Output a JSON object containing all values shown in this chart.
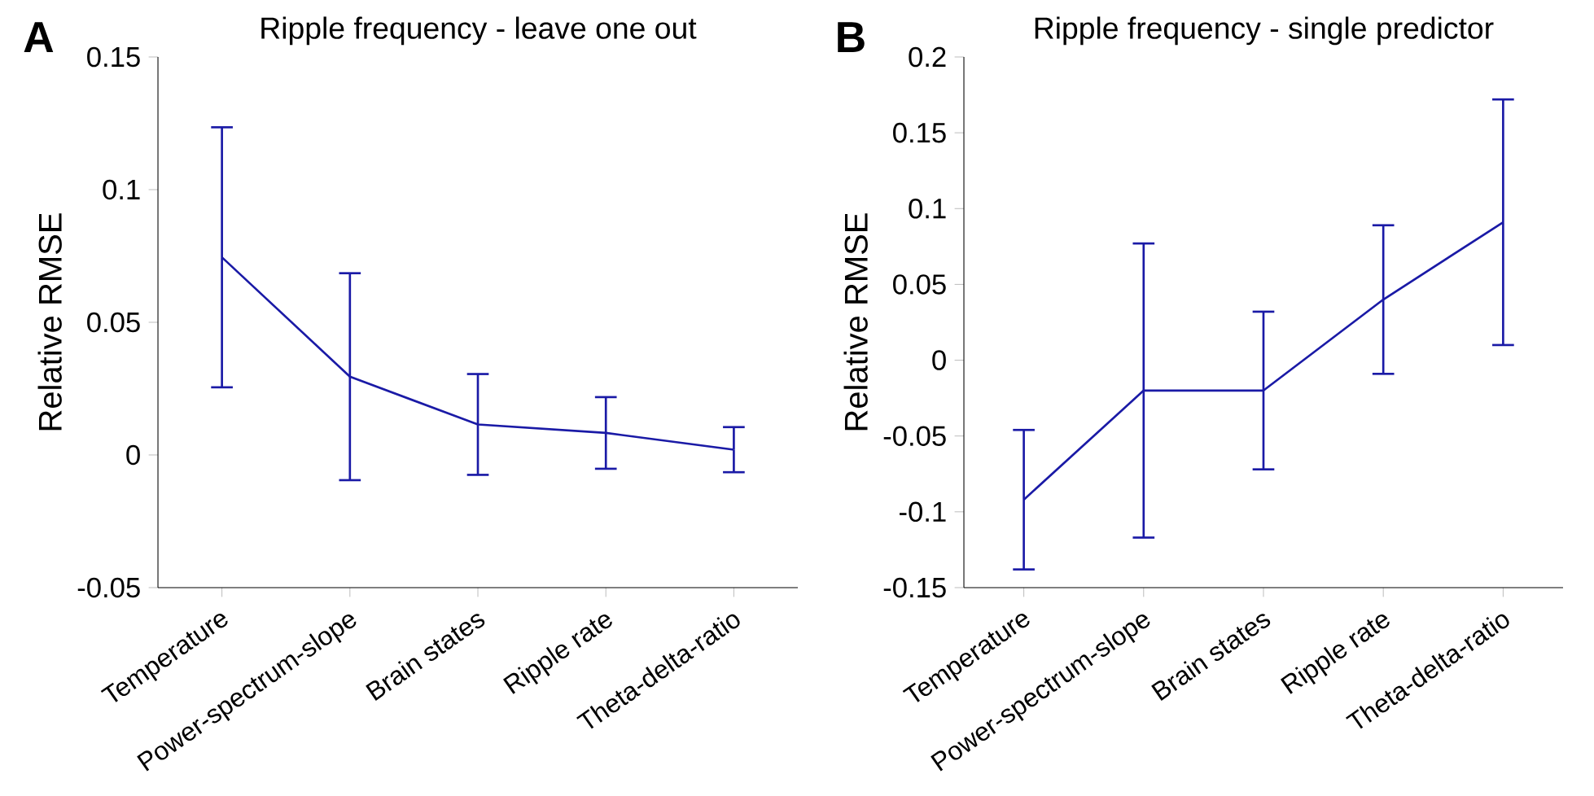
{
  "chart_data": [
    {
      "type": "line",
      "title": "Ripple frequency - leave one out",
      "ylabel": "Relative RMSE",
      "annotations": [
        "A"
      ],
      "categories": [
        "Temperature",
        "Power-spectrum-slope",
        "Brain states",
        "Ripple rate",
        "Theta-delta-ratio"
      ],
      "values": [
        0.0745,
        0.0295,
        0.0115,
        0.0083,
        0.002
      ],
      "errors": [
        0.049,
        0.039,
        0.019,
        0.0135,
        0.0085
      ],
      "color": "#1a1aa6",
      "ylim": [
        -0.05,
        0.15
      ],
      "yticks": [
        -0.05,
        0,
        0.05,
        0.1,
        0.15
      ]
    },
    {
      "type": "line",
      "title": "Ripple frequency - single predictor",
      "ylabel": "Relative RMSE",
      "annotations": [
        "B"
      ],
      "categories": [
        "Temperature",
        "Power-spectrum-slope",
        "Brain states",
        "Ripple rate",
        "Theta-delta-ratio"
      ],
      "values": [
        -0.092,
        -0.02,
        -0.02,
        0.04,
        0.091
      ],
      "errors": [
        0.046,
        0.097,
        0.052,
        0.049,
        0.081
      ],
      "color": "#1a1aa6",
      "ylim": [
        -0.15,
        0.2
      ],
      "yticks": [
        -0.15,
        -0.1,
        -0.05,
        0,
        0.05,
        0.1,
        0.15,
        0.2
      ]
    }
  ]
}
